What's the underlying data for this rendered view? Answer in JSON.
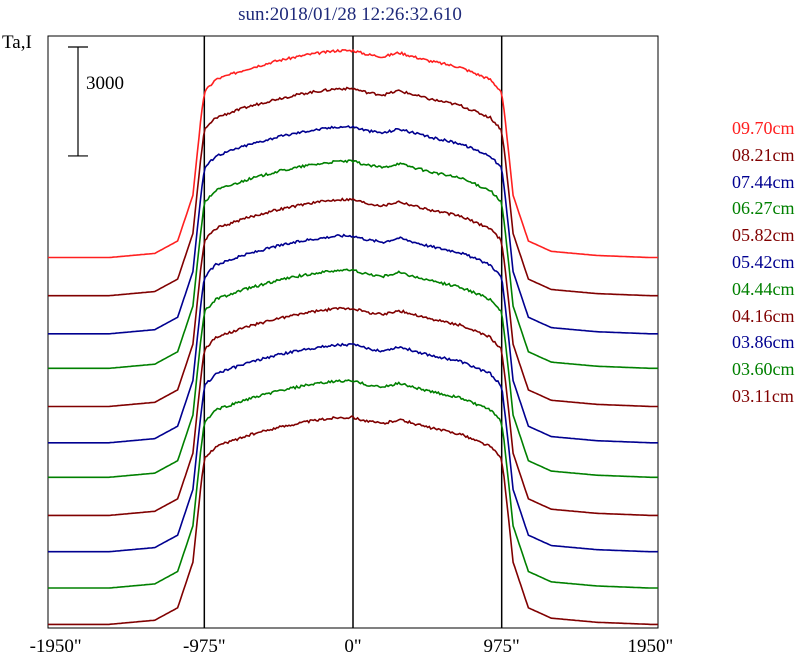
{
  "chart_data": {
    "type": "line",
    "title": "sun:2018/01/28 12:26:32.610",
    "ylabel": "Ta,I",
    "scale_bar_label": "3000",
    "scale_bar_value": 3000,
    "xlim": [
      -2000,
      2000
    ],
    "xticks": [
      {
        "value": -1950,
        "label": "-1950\""
      },
      {
        "value": -975,
        "label": "-975\""
      },
      {
        "value": 0,
        "label": "0\""
      },
      {
        "value": 975,
        "label": "975\""
      },
      {
        "value": 1950,
        "label": "1950\""
      }
    ],
    "vlines": [
      -975,
      0,
      975
    ],
    "x": [
      -2000,
      -1950,
      -1600,
      -1300,
      -1150,
      -1050,
      -1000,
      -975,
      -900,
      -700,
      -500,
      -300,
      -100,
      0,
      100,
      200,
      300,
      400,
      500,
      700,
      900,
      975,
      1000,
      1050,
      1150,
      1300,
      1600,
      1950,
      2000
    ],
    "profile": [
      0,
      0,
      0,
      0.02,
      0.08,
      0.3,
      0.65,
      0.8,
      0.86,
      0.91,
      0.95,
      0.98,
      1.0,
      1.0,
      0.98,
      0.97,
      0.99,
      0.97,
      0.95,
      0.92,
      0.86,
      0.8,
      0.65,
      0.3,
      0.08,
      0.03,
      0.01,
      0,
      0
    ],
    "series": [
      {
        "name": "09.70cm",
        "color": "#ff2020",
        "baseline": 8400,
        "peak": 5700
      },
      {
        "name": "08.21cm",
        "color": "#800000",
        "baseline": 7350,
        "peak": 5700
      },
      {
        "name": "07.44cm",
        "color": "#000090",
        "baseline": 6300,
        "peak": 5700
      },
      {
        "name": "06.27cm",
        "color": "#008000",
        "baseline": 5350,
        "peak": 5700
      },
      {
        "name": "05.82cm",
        "color": "#800000",
        "baseline": 4300,
        "peak": 5700
      },
      {
        "name": "05.42cm",
        "color": "#000090",
        "baseline": 3300,
        "peak": 5700
      },
      {
        "name": "04.44cm",
        "color": "#008000",
        "baseline": 2350,
        "peak": 5700
      },
      {
        "name": "04.16cm",
        "color": "#800000",
        "baseline": 1300,
        "peak": 5700
      },
      {
        "name": "03.86cm",
        "color": "#000090",
        "baseline": 300,
        "peak": 5700
      },
      {
        "name": "03.60cm",
        "color": "#008000",
        "baseline": -700,
        "peak": 5700
      },
      {
        "name": "03.11cm",
        "color": "#800000",
        "baseline": -1700,
        "peak": 5700
      }
    ],
    "ylim": [
      -1800,
      14500
    ]
  }
}
